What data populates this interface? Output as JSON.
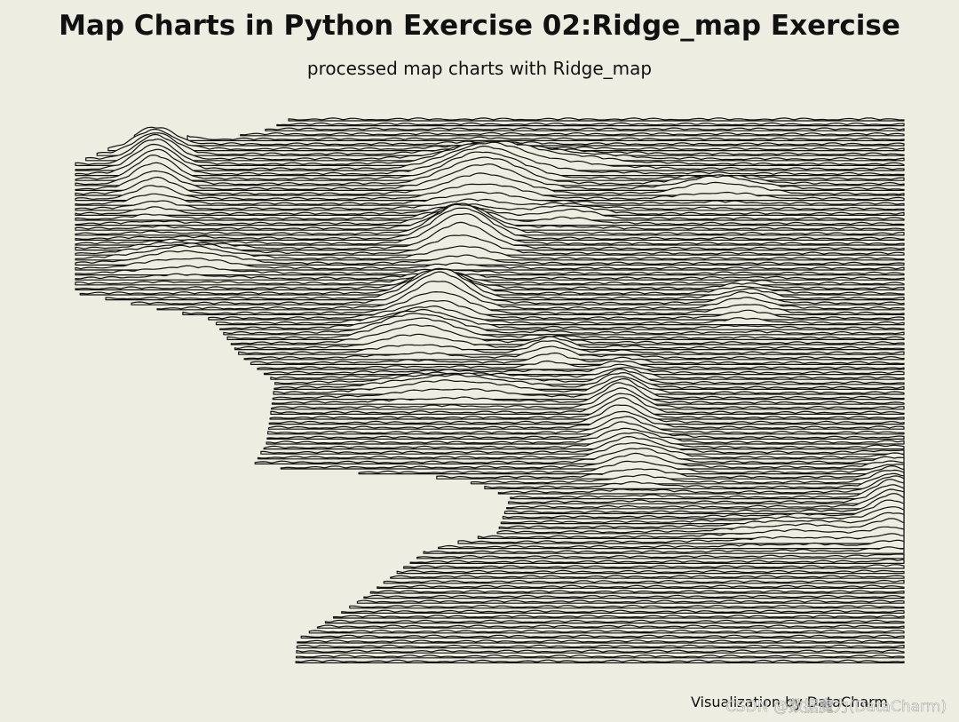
{
  "header": {
    "title": "Map Charts in Python Exercise 02:Ridge_map Exercise",
    "subtitle": "processed map charts with Ridge_map"
  },
  "footer": {
    "credit": "Visualization by DataCharm",
    "watermark": "CSDN @数据魔力(DataCharm)"
  }
}
